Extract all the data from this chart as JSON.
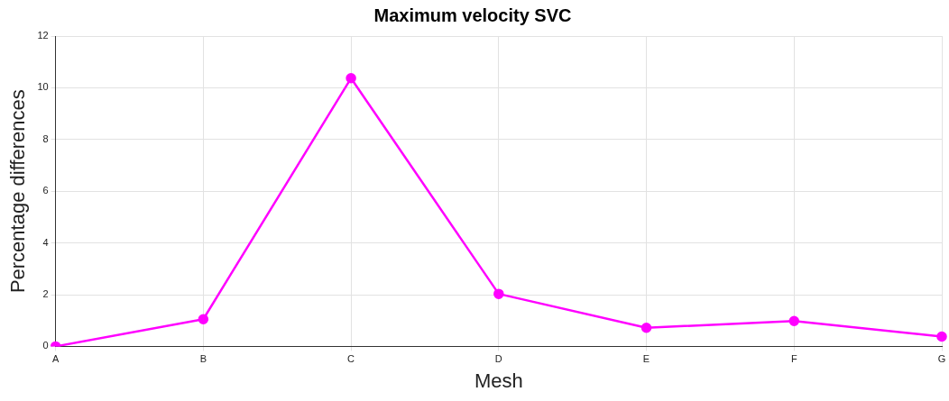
{
  "chart_data": {
    "type": "line",
    "title": "Maximum velocity SVC",
    "xlabel": "Mesh",
    "ylabel": "Percentage differences",
    "categories": [
      "A",
      "B",
      "C",
      "D",
      "E",
      "F",
      "G"
    ],
    "series": [
      {
        "color": "#ff00ff",
        "values": [
          0,
          1.05,
          10.37,
          2.03,
          0.72,
          0.98,
          0.38
        ]
      }
    ],
    "ylim": [
      0,
      12
    ],
    "yticks": [
      0,
      2,
      4,
      6,
      8,
      10,
      12
    ],
    "grid": true,
    "legend": false,
    "marker": "circle",
    "line_style": "solid"
  }
}
